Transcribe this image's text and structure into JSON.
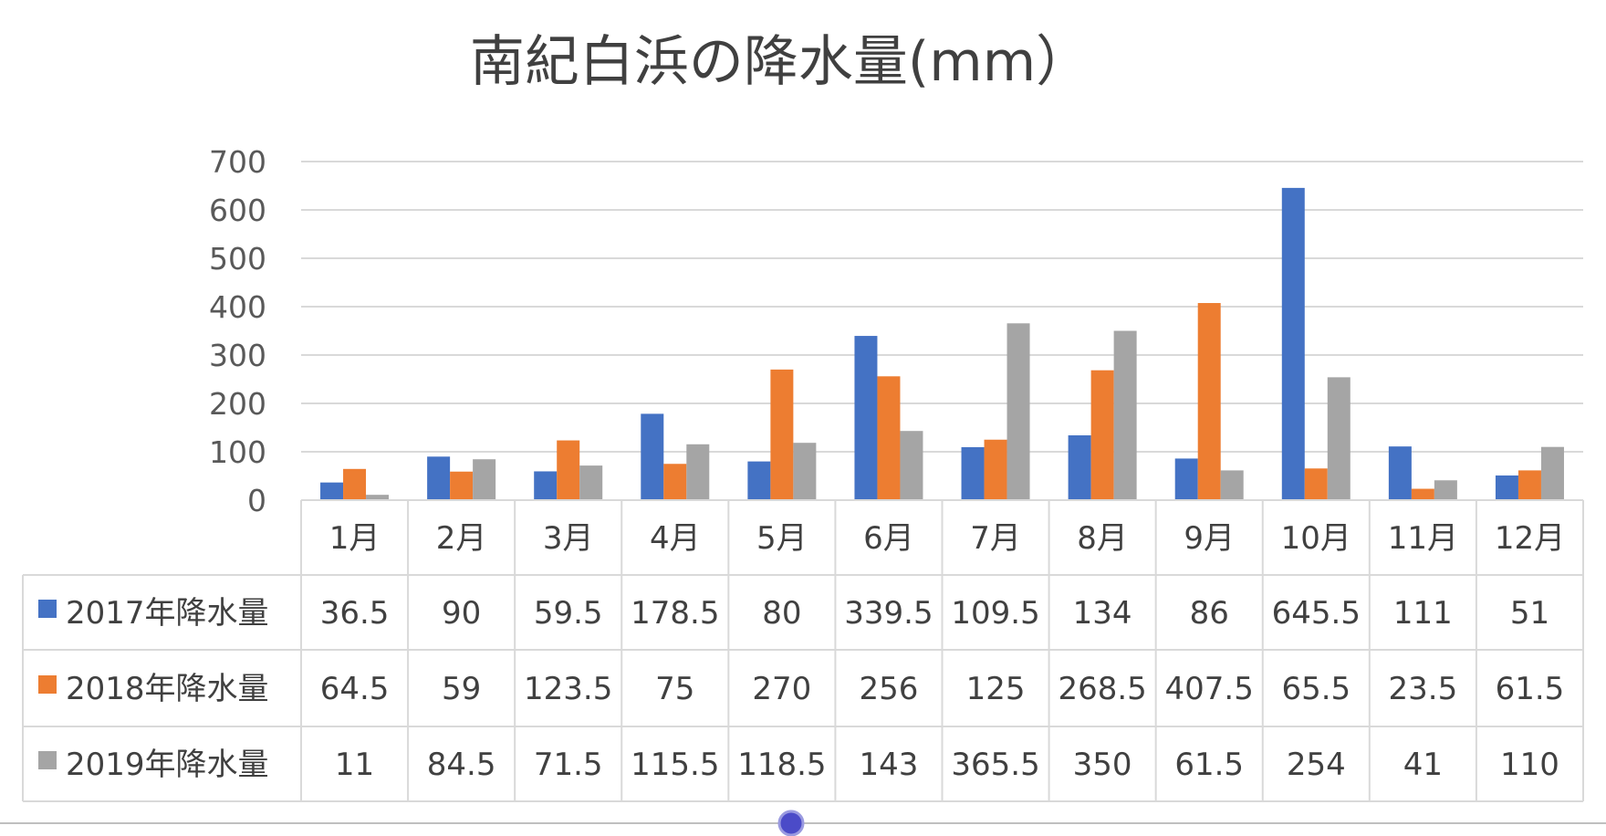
{
  "chart_data": {
    "type": "bar",
    "title": "南紀白浜の降水量(mm）",
    "categories": [
      "1月",
      "2月",
      "3月",
      "4月",
      "5月",
      "6月",
      "7月",
      "8月",
      "9月",
      "10月",
      "11月",
      "12月"
    ],
    "ylim": [
      0,
      700
    ],
    "yticks": [
      0,
      100,
      200,
      300,
      400,
      500,
      600,
      700
    ],
    "grid": true,
    "legend": "data-table",
    "series": [
      {
        "name": "2017年降水量",
        "color": "#4472c4",
        "values": [
          36.5,
          90,
          59.5,
          178.5,
          80,
          339.5,
          109.5,
          134,
          86,
          645.5,
          111,
          51
        ]
      },
      {
        "name": "2018年降水量",
        "color": "#ed7d31",
        "values": [
          64.5,
          59,
          123.5,
          75,
          270,
          256,
          125,
          268.5,
          407.5,
          65.5,
          23.5,
          61.5
        ]
      },
      {
        "name": "2019年降水量",
        "color": "#a5a5a5",
        "values": [
          11,
          84.5,
          71.5,
          115.5,
          118.5,
          143,
          365.5,
          350,
          61.5,
          254,
          41,
          110
        ]
      }
    ]
  }
}
